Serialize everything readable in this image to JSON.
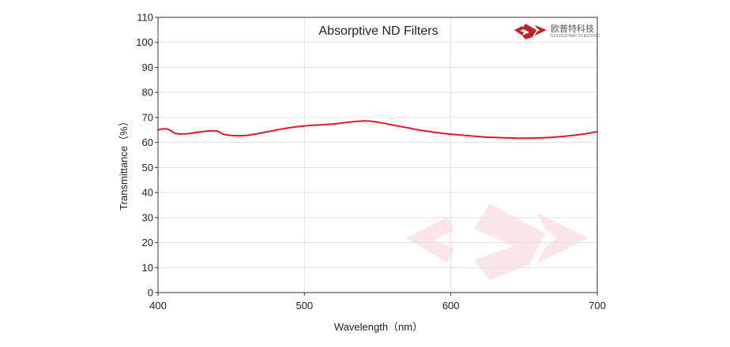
{
  "chart_data": {
    "type": "line",
    "title": "Absorptive ND Filters",
    "xlabel": "Wavelength（nm）",
    "ylabel": "Transmittance（%）",
    "xlim": [
      400,
      700
    ],
    "ylim": [
      0,
      110
    ],
    "xticks": [
      400,
      500,
      600,
      700
    ],
    "yticks": [
      0,
      10,
      20,
      30,
      40,
      50,
      60,
      70,
      80,
      90,
      100,
      110
    ],
    "grid": true,
    "series": [
      {
        "color": "#e0182d",
        "x": [
          400,
          403,
          406,
          408,
          410,
          412,
          415,
          420,
          425,
          430,
          435,
          440,
          442,
          444,
          447,
          450,
          455,
          460,
          470,
          480,
          490,
          500,
          510,
          520,
          530,
          540,
          545,
          550,
          560,
          570,
          580,
          590,
          600,
          610,
          620,
          630,
          640,
          650,
          660,
          670,
          680,
          690,
          700
        ],
        "y": [
          65.0,
          65.4,
          65.4,
          65.0,
          64.2,
          63.6,
          63.4,
          63.5,
          63.9,
          64.3,
          64.6,
          64.6,
          64.2,
          63.4,
          63.0,
          62.8,
          62.7,
          62.8,
          63.7,
          64.9,
          65.9,
          66.6,
          67.0,
          67.4,
          68.1,
          68.6,
          68.5,
          68.1,
          67.0,
          65.9,
          64.8,
          64.0,
          63.3,
          62.8,
          62.3,
          62.0,
          61.8,
          61.7,
          61.8,
          62.1,
          62.6,
          63.3,
          64.3
        ]
      }
    ]
  },
  "logo": {
    "name_cn": "欧普特科技",
    "name_en": "GOLDEN WAY SCIENTIFIC",
    "brand_color": "#c41e2b",
    "watermark_color": "#fbe6e6"
  }
}
